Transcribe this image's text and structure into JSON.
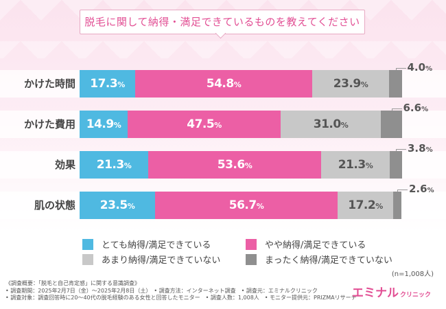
{
  "chart_data": {
    "type": "stacked-bar-horizontal",
    "title": "脱毛に関して納得・満足できているものを教えてください",
    "categories": [
      "かけた時間",
      "かけた費用",
      "効果",
      "肌の状態"
    ],
    "series": [
      {
        "name": "とても納得/満足できている",
        "color": "#4fb9e1",
        "values": [
          17.3,
          14.9,
          21.3,
          23.5
        ]
      },
      {
        "name": "やや納得/満足できている",
        "color": "#ec5fa5",
        "values": [
          54.8,
          47.5,
          53.6,
          56.7
        ]
      },
      {
        "name": "あまり納得/満足できていない",
        "color": "#c8c8c8",
        "values": [
          23.9,
          31.0,
          21.3,
          17.2
        ]
      },
      {
        "name": "まったく納得/満足できていない",
        "color": "#8f8f8f",
        "values": [
          4.0,
          6.6,
          3.8,
          2.6
        ]
      }
    ],
    "xlim": [
      0,
      100
    ],
    "unit": "%"
  },
  "sample_size": "(n=1,008人)",
  "notes": [
    "《調査概要：「脱毛と自己肯定感」に関する意識調査》",
    "• 調査期間：2025年2月7日（金）～2025年2月8日（土）　• 調査方法：インターネット調査　• 調査元：エミナルクリニック",
    "• 調査対象：調査回答時に20～40代の脱毛経験のある女性と回答したモニター　• 調査人数：1,008人　• モニター提供元：PRIZMAリサーチ"
  ],
  "brand": {
    "name": "エミナル",
    "sub": "クリニック"
  }
}
